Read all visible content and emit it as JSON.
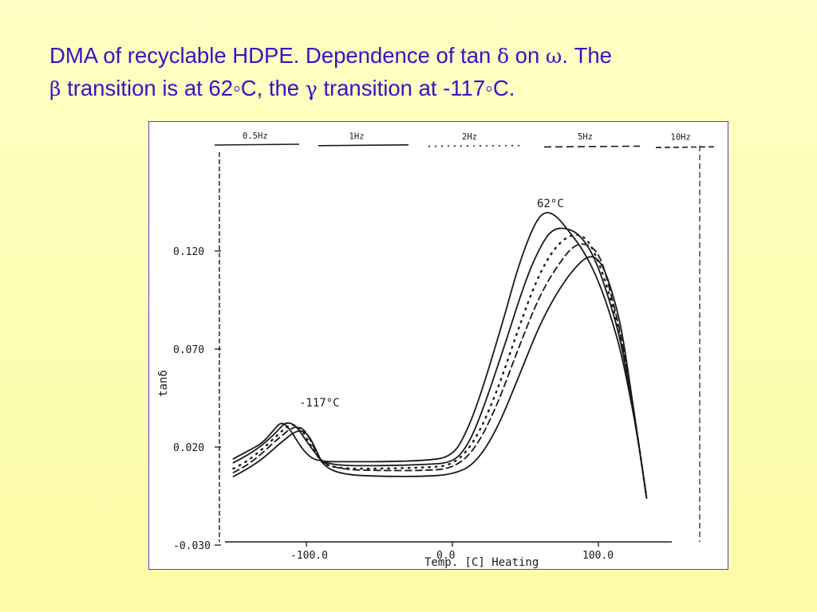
{
  "slide": {
    "title_line1_a": "DMA of recyclable HDPE. Dependence of tan ",
    "delta": "δ",
    "title_line1_b": " on ",
    "omega": "ω",
    "title_line1_c": ".  The",
    "beta": "β",
    "title_line2_a": " transition is at 62",
    "degree1": "◦",
    "title_line2_b": "C, the ",
    "gamma": "γ",
    "title_line2_c": " transition at -117",
    "degree2": "◦",
    "title_line2_d": "C."
  },
  "colors": {
    "title": "#3c10c8",
    "frame_border": "#5b3fc7",
    "background_top": "#ffffc4",
    "background_bottom": "#fcfca6",
    "ink": "#1a1a1a"
  },
  "chart_data": {
    "type": "line",
    "xlabel": "Temp.  [C]  Heating",
    "ylabel": "tanδ",
    "xlim": [
      -150,
      145
    ],
    "ylim": [
      -0.03,
      0.17
    ],
    "x_ticks": [
      "-100.0",
      "0.0",
      "100.0"
    ],
    "y_ticks": [
      "0.120",
      "0.070",
      "0.020",
      "-0.030"
    ],
    "y_tick_values": [
      0.12,
      0.07,
      0.02,
      -0.03
    ],
    "legend": [
      "0.5Hz",
      "1Hz",
      "2Hz",
      "5Hz",
      "10Hz"
    ],
    "annotations": [
      "62°C",
      "-117°C"
    ],
    "grid": false,
    "series": [
      {
        "name": "0.5Hz",
        "dash": "solid",
        "x": [
          -150,
          -140,
          -130,
          -122,
          -117,
          -111,
          -103,
          -96,
          -90,
          -85,
          -75,
          -50,
          -20,
          0,
          10,
          20,
          35,
          45,
          55,
          62,
          70,
          80,
          90,
          100,
          108,
          115,
          122,
          128,
          133
        ],
        "y": [
          0.014,
          0.018,
          0.022,
          0.029,
          0.033,
          0.029,
          0.019,
          0.014,
          0.013,
          0.0125,
          0.0125,
          0.0125,
          0.013,
          0.015,
          0.028,
          0.048,
          0.085,
          0.112,
          0.132,
          0.14,
          0.139,
          0.13,
          0.12,
          0.105,
          0.088,
          0.07,
          0.045,
          0.02,
          -0.006
        ]
      },
      {
        "name": "1Hz",
        "dash": "solid",
        "x": [
          -150,
          -140,
          -130,
          -120,
          -114,
          -107,
          -100,
          -93,
          -88,
          -75,
          -50,
          -20,
          0,
          10,
          20,
          35,
          50,
          60,
          68,
          78,
          88,
          98,
          108,
          115,
          122,
          128,
          133
        ],
        "y": [
          0.012,
          0.016,
          0.021,
          0.028,
          0.033,
          0.031,
          0.023,
          0.016,
          0.012,
          0.0105,
          0.0105,
          0.011,
          0.012,
          0.02,
          0.037,
          0.07,
          0.105,
          0.122,
          0.131,
          0.132,
          0.128,
          0.116,
          0.094,
          0.075,
          0.047,
          0.02,
          -0.006
        ]
      },
      {
        "name": "2Hz",
        "dash": "dotted",
        "x": [
          -150,
          -140,
          -130,
          -120,
          -111,
          -104,
          -98,
          -92,
          -88,
          -75,
          -50,
          -20,
          0,
          15,
          30,
          45,
          58,
          70,
          82,
          92,
          100,
          108,
          115,
          122,
          128,
          133
        ],
        "y": [
          0.009,
          0.013,
          0.019,
          0.026,
          0.032,
          0.03,
          0.022,
          0.015,
          0.011,
          0.009,
          0.009,
          0.0095,
          0.0105,
          0.022,
          0.047,
          0.08,
          0.106,
          0.122,
          0.129,
          0.127,
          0.115,
          0.097,
          0.077,
          0.048,
          0.02,
          -0.006
        ]
      },
      {
        "name": "5Hz",
        "dash": "dashed",
        "x": [
          -150,
          -140,
          -130,
          -120,
          -108,
          -101,
          -95,
          -90,
          -75,
          -50,
          -20,
          0,
          15,
          30,
          45,
          60,
          75,
          85,
          95,
          102,
          108,
          115,
          122,
          128,
          133
        ],
        "y": [
          0.007,
          0.011,
          0.017,
          0.024,
          0.031,
          0.029,
          0.02,
          0.012,
          0.0085,
          0.008,
          0.008,
          0.009,
          0.018,
          0.04,
          0.07,
          0.098,
          0.116,
          0.124,
          0.123,
          0.116,
          0.1,
          0.079,
          0.049,
          0.02,
          -0.006
        ]
      },
      {
        "name": "10Hz",
        "dash": "solid",
        "x": [
          -150,
          -140,
          -130,
          -118,
          -106,
          -99,
          -93,
          -88,
          -75,
          -50,
          -20,
          0,
          15,
          30,
          45,
          60,
          75,
          88,
          96,
          103,
          110,
          116,
          122,
          128,
          133
        ],
        "y": [
          0.005,
          0.009,
          0.014,
          0.022,
          0.029,
          0.027,
          0.018,
          0.01,
          0.006,
          0.005,
          0.005,
          0.006,
          0.011,
          0.028,
          0.055,
          0.083,
          0.103,
          0.115,
          0.118,
          0.113,
          0.098,
          0.08,
          0.05,
          0.02,
          -0.006
        ]
      }
    ]
  }
}
